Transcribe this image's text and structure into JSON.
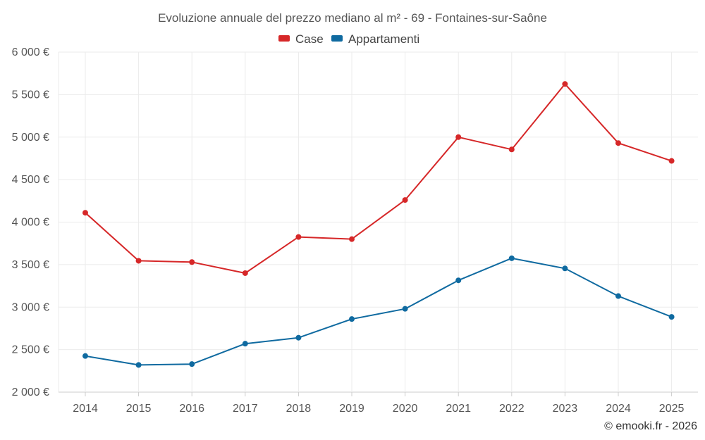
{
  "chart_data": {
    "type": "line",
    "title": "Evoluzione annuale del prezzo mediano al m² - 69 - Fontaines-sur-Saône",
    "categories": [
      "2014",
      "2015",
      "2016",
      "2017",
      "2018",
      "2019",
      "2020",
      "2021",
      "2022",
      "2023",
      "2024",
      "2025"
    ],
    "series": [
      {
        "name": "Case",
        "color": "#d62728",
        "values": [
          4110,
          3545,
          3530,
          3400,
          3825,
          3800,
          4260,
          5000,
          4855,
          5625,
          4930,
          4720
        ]
      },
      {
        "name": "Appartamenti",
        "color": "#0f6aa0",
        "values": [
          2425,
          2320,
          2330,
          2570,
          2640,
          2860,
          2980,
          3315,
          3575,
          3455,
          3130,
          2885
        ]
      }
    ],
    "ylim": [
      2000,
      6000
    ],
    "yticks": [
      2000,
      2500,
      3000,
      3500,
      4000,
      4500,
      5000,
      5500,
      6000
    ],
    "ytick_labels": [
      "2 000 €",
      "2 500 €",
      "3 000 €",
      "3 500 €",
      "4 000 €",
      "4 500 €",
      "5 000 €",
      "5 500 €",
      "6 000 €"
    ],
    "xlabel": "",
    "ylabel": "",
    "grid": true,
    "legend_position": "top-center",
    "credit": "© emooki.fr - 2026"
  }
}
